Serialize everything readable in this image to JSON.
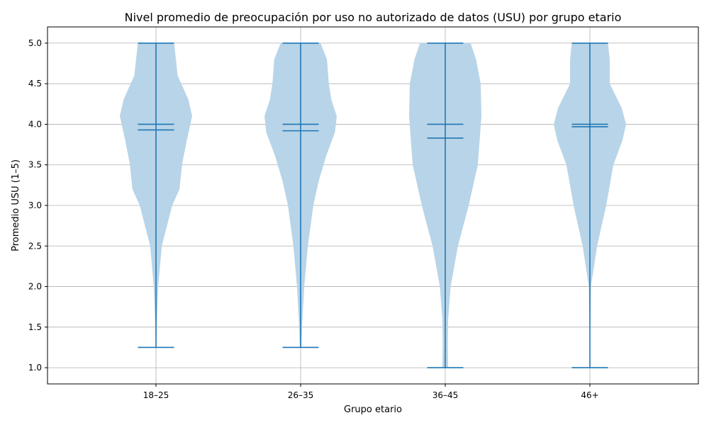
{
  "chart_data": {
    "type": "violin",
    "title": "Nivel promedio de preocupación por uso no autorizado de datos (USU) por grupo etario",
    "xlabel": "Grupo etario",
    "ylabel": "Promedio USU (1–5)",
    "categories": [
      "18–25",
      "26–35",
      "36–45",
      "46+"
    ],
    "ylim": [
      0.8,
      5.2
    ],
    "yticks": [
      1.0,
      1.5,
      2.0,
      2.5,
      3.0,
      3.5,
      4.0,
      4.5,
      5.0
    ],
    "ytick_labels": [
      "1.0",
      "1.5",
      "2.0",
      "2.5",
      "3.0",
      "3.5",
      "4.0",
      "4.5",
      "5.0"
    ],
    "grid": true,
    "violins": [
      {
        "category": "18–25",
        "min": 1.25,
        "max": 5.0,
        "mean": 3.93,
        "median": 4.0,
        "density": [
          [
            1.25,
            0.005
          ],
          [
            1.5,
            0.02
          ],
          [
            2.0,
            0.06
          ],
          [
            2.5,
            0.16
          ],
          [
            3.0,
            0.45
          ],
          [
            3.2,
            0.65
          ],
          [
            3.5,
            0.72
          ],
          [
            3.8,
            0.85
          ],
          [
            4.1,
            1.0
          ],
          [
            4.3,
            0.9
          ],
          [
            4.6,
            0.6
          ],
          [
            4.8,
            0.55
          ],
          [
            5.0,
            0.5
          ]
        ]
      },
      {
        "category": "26–35",
        "min": 1.25,
        "max": 5.0,
        "mean": 3.92,
        "median": 4.0,
        "density": [
          [
            1.25,
            0.02
          ],
          [
            1.5,
            0.04
          ],
          [
            2.0,
            0.1
          ],
          [
            2.5,
            0.2
          ],
          [
            3.0,
            0.35
          ],
          [
            3.3,
            0.5
          ],
          [
            3.6,
            0.7
          ],
          [
            3.9,
            0.95
          ],
          [
            4.1,
            1.0
          ],
          [
            4.3,
            0.85
          ],
          [
            4.5,
            0.78
          ],
          [
            4.8,
            0.73
          ],
          [
            5.0,
            0.55
          ]
        ]
      },
      {
        "category": "36–45",
        "min": 1.0,
        "max": 5.0,
        "mean": 3.83,
        "median": 4.0,
        "density": [
          [
            1.0,
            0.08
          ],
          [
            1.3,
            0.07
          ],
          [
            1.6,
            0.08
          ],
          [
            2.0,
            0.15
          ],
          [
            2.5,
            0.35
          ],
          [
            3.0,
            0.65
          ],
          [
            3.5,
            0.9
          ],
          [
            3.8,
            0.95
          ],
          [
            4.1,
            1.0
          ],
          [
            4.5,
            0.98
          ],
          [
            4.8,
            0.85
          ],
          [
            5.0,
            0.7
          ]
        ]
      },
      {
        "category": "46+",
        "min": 1.0,
        "max": 5.0,
        "mean": 3.97,
        "median": 4.0,
        "density": [
          [
            1.0,
            0.003
          ],
          [
            1.5,
            0.01
          ],
          [
            2.0,
            0.03
          ],
          [
            2.5,
            0.2
          ],
          [
            3.0,
            0.45
          ],
          [
            3.5,
            0.65
          ],
          [
            3.8,
            0.9
          ],
          [
            4.0,
            1.0
          ],
          [
            4.2,
            0.88
          ],
          [
            4.5,
            0.55
          ],
          [
            4.8,
            0.55
          ],
          [
            5.0,
            0.5
          ]
        ]
      }
    ],
    "colors": {
      "violin_fill": "#b8d4e8",
      "line": "#1f77b4",
      "grid": "#b0b0b0",
      "axis": "#000000"
    }
  }
}
